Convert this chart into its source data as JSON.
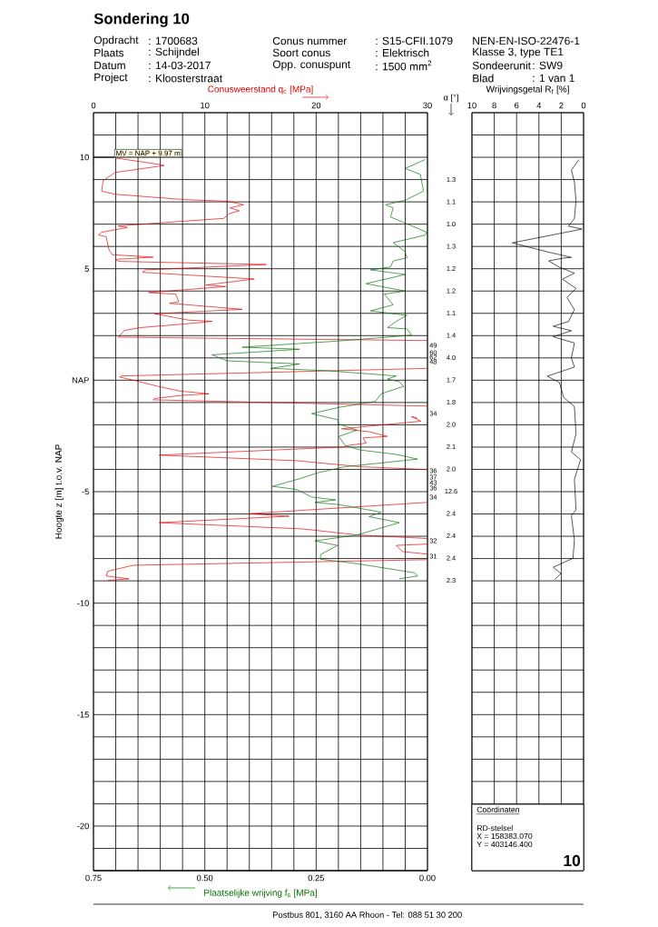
{
  "chart_data": [
    {
      "type": "line",
      "title": "Sondering 10",
      "xlabel": "Plaatselijke wrijving f$_{s}$ [MPa]",
      "x2label": "Conusweerstand q$_{c}$ [MPa]",
      "ylabel": "Hoogte z [m] t.o.v. NAP",
      "xlim": [
        0.75,
        0
      ],
      "xticks": [
        {
          "value": 0.75,
          "label": "0.75"
        },
        {
          "value": 0.5,
          "label": "0.50"
        },
        {
          "value": 0.25,
          "label": "0.25"
        },
        {
          "value": 0,
          "label": "0.00"
        }
      ],
      "x2lim": [
        0,
        30
      ],
      "x2ticks": [
        0,
        {
          "value": 2,
          "label": null
        },
        {
          "value": 4,
          "label": null
        },
        {
          "value": 6,
          "label": null
        },
        {
          "value": 8,
          "label": null
        },
        10,
        {
          "value": 12,
          "label": null
        },
        {
          "value": 14,
          "label": null
        },
        {
          "value": 16,
          "label": null
        },
        {
          "value": 18,
          "label": null
        },
        20,
        {
          "value": 22,
          "label": null
        },
        {
          "value": 24,
          "label": null
        },
        {
          "value": 26,
          "label": null
        },
        {
          "value": 28,
          "label": null
        },
        30
      ],
      "ylim": [
        -22,
        12
      ],
      "yticks": [
        {
          "value": -22,
          "label": null
        },
        {
          "value": -21,
          "label": null
        },
        -20,
        {
          "value": -19,
          "label": null
        },
        {
          "value": -18,
          "label": null
        },
        {
          "value": -17,
          "label": null
        },
        {
          "value": -16,
          "label": null
        },
        -15,
        {
          "value": -14,
          "label": null
        },
        {
          "value": -13,
          "label": null
        },
        {
          "value": -12,
          "label": null
        },
        {
          "value": -11,
          "label": null
        },
        -10,
        {
          "value": -9,
          "label": null
        },
        {
          "value": -8,
          "label": null
        },
        {
          "value": -7,
          "label": null
        },
        {
          "value": -6,
          "label": null
        },
        -5,
        {
          "value": -4,
          "label": null
        },
        {
          "value": -3,
          "label": null
        },
        {
          "value": -2,
          "label": null
        },
        {
          "value": -1,
          "label": null
        },
        {
          "value": 0,
          "label": "NAP"
        },
        {
          "value": 1,
          "label": null
        },
        {
          "value": 2,
          "label": null
        },
        {
          "value": 3,
          "label": null
        },
        {
          "value": 4,
          "label": null
        },
        5,
        {
          "value": 6,
          "label": null
        },
        {
          "value": 7,
          "label": null
        },
        {
          "value": 8,
          "label": null
        },
        {
          "value": 9,
          "label": null
        },
        10,
        {
          "value": 11,
          "label": null
        },
        {
          "value": 12,
          "label": null
        }
      ],
      "grid": true,
      "marker": "none",
      "series": [
        {
          "color": "#e00000",
          "axis": "x2",
          "x": [
            1.95,
            6.03,
            6.35,
            1.95,
            0.87,
            0.73,
            1.95,
            8.2,
            12.0,
            13.49,
            12.27,
            13.09,
            12.14,
            11.73,
            4.67,
            2.23,
            3.04,
            0.73,
            0.46,
            1.14,
            1.41,
            1.68,
            5.35,
            1.95,
            2.23,
            15.53,
            4.67,
            4.4,
            14.44,
            10.1,
            11.87,
            4.94,
            7.39,
            7.66,
            6.84,
            13.36,
            5.48,
            8.47,
            10.64,
            9.29,
            4.26,
            2.77,
            2.23,
            30,
            null,
            30,
            2.5,
            2.36,
            3.58,
            5.76,
            7.66,
            10.37,
            7.93,
            5.48,
            5.35,
            30,
            null,
            29.1,
            28.56,
            29.4,
            22.3,
            24.76,
            26.39,
            24.2,
            24.5,
            22.86,
            22.6,
            5.89,
            18.25,
            23.95,
            30,
            null,
            30,
            13.9,
            17.57,
            5.89,
            18.79,
            23.68,
            30,
            null,
            30,
            27.2,
            27.75,
            30,
            null,
            30,
            3.58,
            1.28,
            1.14,
            3.18,
            1.28
          ],
          "values": [
            9.97,
            9.67,
            9.63,
            9.32,
            8.95,
            8.48,
            8.34,
            8.1,
            8.03,
            7.87,
            7.73,
            7.6,
            7.46,
            7.26,
            7.01,
            6.92,
            6.85,
            6.64,
            6.51,
            6.44,
            5.83,
            5.63,
            5.52,
            5.42,
            5.33,
            5.19,
            4.95,
            4.84,
            4.54,
            4.27,
            4.2,
            3.93,
            3.86,
            3.52,
            3.45,
            3.18,
            2.98,
            2.7,
            2.64,
            2.57,
            2.36,
            2.23,
            1.93,
            1.78,
            null,
            0.53,
            0.19,
            0.14,
            0,
            -0.27,
            -0.48,
            -0.61,
            -0.68,
            -0.82,
            -0.88,
            -1.16,
            null,
            -1.7,
            -1.63,
            -1.84,
            -2.18,
            -2.31,
            -2.52,
            -2.59,
            -2.82,
            -2.93,
            -2.99,
            -3.36,
            -3.61,
            -3.88,
            -4.01,
            null,
            -5.48,
            -5.99,
            -6.1,
            -6.39,
            -6.67,
            -6.94,
            -7.1,
            null,
            -7.35,
            -7.41,
            -7.69,
            -7.8,
            null,
            -8.05,
            -8.3,
            -8.57,
            -8.78,
            -8.91,
            -8.98
          ]
        },
        {
          "color": "#007000",
          "x": [
            0.005,
            0.05,
            0.016,
            0.009,
            0.05,
            0.094,
            0.077,
            0.083,
            0.05,
            0.002,
            0.005,
            0.077,
            0.05,
            0.046,
            0.077,
            0.083,
            0.128,
            0.05,
            0.138,
            0.05,
            0.097,
            0.077,
            0.128,
            0.046,
            0.07,
            0.09,
            0.046,
            0.036,
            0.09,
            0.206,
            0.416,
            0.287,
            0.484,
            0.45,
            0.287,
            0.352,
            0.226,
            0.07,
            0.09,
            0.063,
            0.053,
            0.104,
            0.117,
            0.199,
            0.26,
            0.202,
            0.199,
            0.158,
            0.199,
            0.185,
            0.151,
            0.07,
            0.022,
            0.185,
            0.246,
            0.287,
            0.348,
            0.294,
            0.26,
            0.206,
            0.253,
            0.199,
            0.104,
            0.131,
            0.063,
            0.158,
            0.253,
            0.202,
            0.24,
            0.24,
            0.158,
            0.029,
            0.022,
            0.063
          ],
          "values": [
            9.9,
            9.5,
            9.23,
            8.48,
            8.07,
            7.87,
            7.73,
            7.32,
            7.05,
            6.64,
            6.51,
            6.17,
            5.76,
            5.49,
            5.35,
            5.08,
            4.95,
            4.74,
            4.33,
            4.0,
            3.86,
            3.38,
            3.11,
            2.91,
            2.64,
            2.36,
            2.3,
            2.02,
            1.93,
            1.75,
            1.48,
            1.39,
            1.14,
            0.87,
            0.73,
            0.53,
            0.43,
            0.19,
            0.05,
            -0.07,
            -0.27,
            -0.61,
            -0.95,
            -1.22,
            -1.5,
            -1.77,
            -1.97,
            -2.24,
            -2.52,
            -2.93,
            -3.13,
            -3.33,
            -3.54,
            -3.88,
            -4.15,
            -4.42,
            -4.76,
            -4.9,
            -5.24,
            -5.37,
            -5.48,
            -5.58,
            -5.92,
            -6.12,
            -6.39,
            -6.94,
            -7.21,
            -7.41,
            -7.82,
            -8.03,
            -8.23,
            -8.64,
            -8.78,
            -8.91
          ]
        }
      ],
      "annotations": [
        "Opdracht",
        ": 1700683",
        "Plaats",
        ": Schijndel",
        "Datum",
        ": 14-03-2017",
        "Project",
        ": Kloosterstraat",
        "Conus nummer",
        ": S15-CFII.1079",
        "Soort conus",
        ": Elektrisch",
        "Opp. conuspunt",
        ": 1500 mm$^{2}$",
        "NEN-EN-ISO-22476-1",
        "Klasse 3, type TE1",
        "Sondeerunit",
        ": SW9",
        "Blad",
        ": 1 van 1",
        "Postbus 801, 3160 AA Rhoon - Tel: 088 51 30 200",
        "α [°]",
        "MV = NAP + 9.97 m",
        "49",
        "60",
        "62",
        "48",
        "34",
        "36",
        "37",
        "43",
        "36",
        "34",
        "32",
        "31",
        "1.3",
        "1.1",
        "1.0",
        "1.3",
        "1.2",
        "1.2",
        "1.1",
        "1.4",
        "4.0",
        "1.7",
        "1.8",
        "2.0",
        "2.1",
        "2.0",
        "12.6",
        "2.4",
        "2.4",
        "2.4",
        "2.3"
      ]
    },
    {
      "type": "line",
      "xlabel": "Wrijvingsgetal R$_{f}$ [%]",
      "xlim": [
        10,
        0
      ],
      "xticks": [
        10,
        8,
        6,
        4,
        2,
        0
      ],
      "ylim": [
        -22,
        12
      ],
      "yticks": [
        {
          "value": -22,
          "label": null
        },
        {
          "value": -21,
          "label": null
        },
        -20,
        {
          "value": -19,
          "label": null
        },
        {
          "value": -18,
          "label": null
        },
        {
          "value": -17,
          "label": null
        },
        {
          "value": -16,
          "label": null
        },
        -15,
        {
          "value": -14,
          "label": null
        },
        {
          "value": -13,
          "label": null
        },
        {
          "value": -12,
          "label": null
        },
        {
          "value": -11,
          "label": null
        },
        -10,
        {
          "value": -9,
          "label": null
        },
        {
          "value": -8,
          "label": null
        },
        {
          "value": -7,
          "label": null
        },
        {
          "value": -6,
          "label": null
        },
        -5,
        {
          "value": -4,
          "label": null
        },
        {
          "value": -3,
          "label": null
        },
        {
          "value": -2,
          "label": null
        },
        {
          "value": -1,
          "label": null
        },
        {
          "value": 0,
          "label": null
        },
        {
          "value": 1,
          "label": null
        },
        {
          "value": 2,
          "label": null
        },
        {
          "value": 3,
          "label": null
        },
        {
          "value": 4,
          "label": null
        },
        5,
        {
          "value": 6,
          "label": null
        },
        {
          "value": 7,
          "label": null
        },
        {
          "value": 8,
          "label": null
        },
        {
          "value": 9,
          "label": null
        },
        10,
        {
          "value": 11,
          "label": null
        },
        {
          "value": 12,
          "label": null
        }
      ],
      "tick_labels": "x",
      "grid": true,
      "marker": "none",
      "series": [
        {
          "color": "#000000",
          "x": [
            0.41,
            1.09,
            0.82,
            0.68,
            0.82,
            1.36,
            0.14,
            6.39,
            3.26,
            1.09,
            1.77,
            3.13,
            2.17,
            0.82,
            1.9,
            0.68,
            1.49,
            0.82,
            1.36,
            2.72,
            1.09,
            2.72,
            0.82,
            1.09,
            0.82,
            3.26,
            2.17,
            1.77,
            0.82,
            0.68,
            1.09,
            0.27,
            0.82,
            0.68,
            1.09,
            0.82,
            0.95,
            2.72,
            2.04,
            2.58
          ],
          "values": [
            9.9,
            9.43,
            8.88,
            8.07,
            7.25,
            6.91,
            6.78,
            6.16,
            5.76,
            5.51,
            5.48,
            5.35,
            5.07,
            4.8,
            4.53,
            4.12,
            3.71,
            3.17,
            2.63,
            2.42,
            2.22,
            1.95,
            1.67,
            0.99,
            0.59,
            0.18,
            -0.1,
            -0.78,
            -1.18,
            -2.41,
            -3.22,
            -3.56,
            -4.45,
            -5.81,
            -6.08,
            -7.17,
            -7.99,
            -8.39,
            -8.67,
            -8.94
          ]
        }
      ],
      "annotations": [
        "Coördinaten",
        "RD-stelsel",
        "X =  158383.070",
        "Y =  403146.400",
        "10"
      ]
    }
  ]
}
